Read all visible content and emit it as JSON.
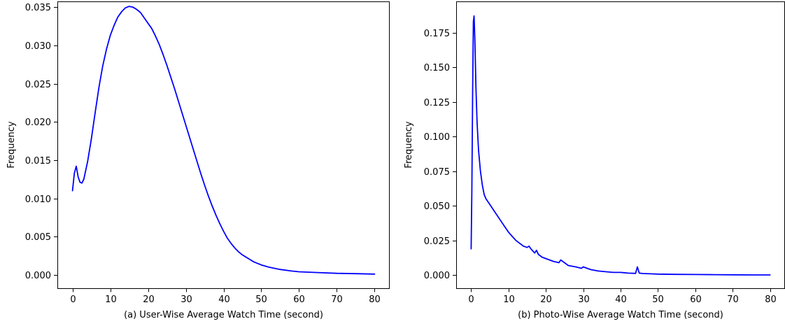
{
  "chart_data": [
    {
      "type": "line",
      "title": "",
      "xlabel": "(a) User-Wise Average Watch Time (second)",
      "ylabel": "Frequency",
      "xlim": [
        -4,
        84
      ],
      "ylim": [
        -0.00175,
        0.03575
      ],
      "xticks": [
        0,
        10,
        20,
        30,
        40,
        50,
        60,
        70,
        80
      ],
      "xtick_labels": [
        "0",
        "10",
        "20",
        "30",
        "40",
        "50",
        "60",
        "70",
        "80"
      ],
      "yticks": [
        0.0,
        0.005,
        0.01,
        0.015,
        0.02,
        0.025,
        0.03,
        0.035
      ],
      "ytick_labels": [
        "0.000",
        "0.005",
        "0.010",
        "0.015",
        "0.020",
        "0.025",
        "0.030",
        "0.035"
      ],
      "grid": false,
      "color": "#0000ff",
      "series": [
        {
          "x": [
            0,
            0.5,
            1,
            1.5,
            2,
            2.5,
            3,
            4,
            5,
            6,
            7,
            8,
            9,
            10,
            11,
            12,
            13,
            14,
            15,
            16,
            17,
            18,
            19,
            20,
            21,
            22,
            23,
            24,
            25,
            26,
            27,
            28,
            29,
            30,
            31,
            32,
            33,
            34,
            35,
            36,
            37,
            38,
            39,
            40,
            41,
            42,
            43,
            44,
            45,
            46,
            47,
            48,
            50,
            52,
            55,
            58,
            60,
            65,
            70,
            75,
            80
          ],
          "y": [
            0.011,
            0.0133,
            0.0142,
            0.0128,
            0.0121,
            0.012,
            0.0125,
            0.0148,
            0.0178,
            0.0212,
            0.0245,
            0.0273,
            0.0295,
            0.0313,
            0.0326,
            0.0337,
            0.0344,
            0.0349,
            0.0351,
            0.035,
            0.0347,
            0.0343,
            0.0336,
            0.0329,
            0.0322,
            0.0312,
            0.0301,
            0.0288,
            0.0274,
            0.0259,
            0.0244,
            0.0228,
            0.0212,
            0.0196,
            0.018,
            0.0164,
            0.0148,
            0.0132,
            0.0117,
            0.0103,
            0.009,
            0.0078,
            0.0067,
            0.0057,
            0.0048,
            0.0041,
            0.0035,
            0.003,
            0.0026,
            0.0023,
            0.002,
            0.0017,
            0.0013,
            0.001,
            0.0007,
            0.0005,
            0.0004,
            0.0003,
            0.0002,
            0.00015,
            0.0001
          ]
        }
      ]
    },
    {
      "type": "line",
      "title": "",
      "xlabel": "(b) Photo-Wise Average Watch Time (second)",
      "ylabel": "Frequency",
      "xlim": [
        -4,
        84
      ],
      "ylim": [
        -0.0094,
        0.1975
      ],
      "xticks": [
        0,
        10,
        20,
        30,
        40,
        50,
        60,
        70,
        80
      ],
      "xtick_labels": [
        "0",
        "10",
        "20",
        "30",
        "40",
        "50",
        "60",
        "70",
        "80"
      ],
      "yticks": [
        0.0,
        0.025,
        0.05,
        0.075,
        0.1,
        0.125,
        0.15,
        0.175
      ],
      "ytick_labels": [
        "0.000",
        "0.025",
        "0.050",
        "0.075",
        "0.100",
        "0.125",
        "0.150",
        "0.175"
      ],
      "grid": false,
      "color": "#0000ff",
      "series": [
        {
          "x": [
            0,
            0.2,
            0.4,
            0.6,
            0.8,
            1.0,
            1.3,
            1.6,
            2.0,
            2.5,
            3.0,
            3.5,
            4,
            5,
            6,
            7,
            8,
            9,
            10,
            11,
            12,
            13,
            14,
            15,
            15.5,
            16,
            17,
            17.5,
            18,
            19,
            20,
            22,
            23.5,
            24,
            26,
            28,
            29.5,
            30,
            32,
            34,
            36,
            38,
            40,
            42,
            44,
            44.5,
            45,
            46,
            48,
            50,
            55,
            60,
            65,
            70,
            75,
            80
          ],
          "y": [
            0.019,
            0.06,
            0.13,
            0.183,
            0.187,
            0.17,
            0.135,
            0.11,
            0.09,
            0.075,
            0.065,
            0.058,
            0.055,
            0.051,
            0.047,
            0.043,
            0.039,
            0.035,
            0.031,
            0.028,
            0.025,
            0.023,
            0.021,
            0.02,
            0.021,
            0.019,
            0.016,
            0.018,
            0.015,
            0.013,
            0.012,
            0.01,
            0.009,
            0.011,
            0.007,
            0.006,
            0.005,
            0.006,
            0.004,
            0.003,
            0.0025,
            0.002,
            0.002,
            0.0015,
            0.0013,
            0.006,
            0.0015,
            0.0012,
            0.001,
            0.0008,
            0.0006,
            0.0005,
            0.0004,
            0.0003,
            0.0002,
            0.0002
          ]
        }
      ]
    }
  ]
}
